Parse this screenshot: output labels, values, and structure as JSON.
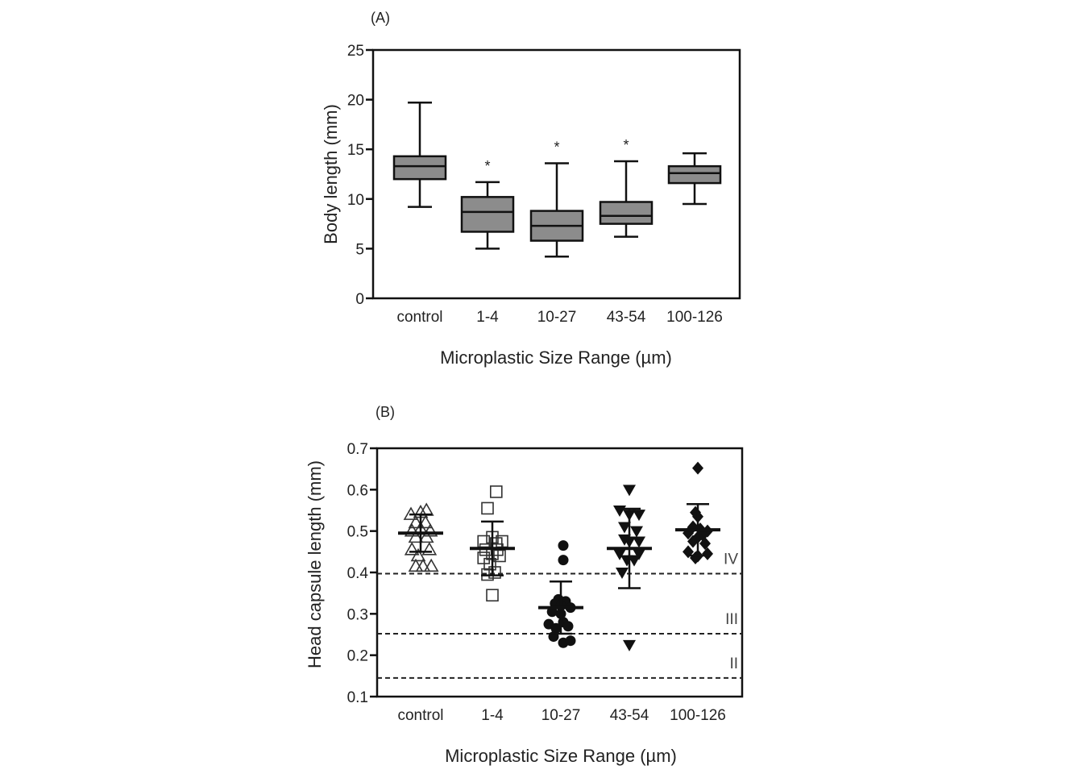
{
  "chart_data": [
    {
      "type": "boxplot",
      "panel_label": "(A)",
      "ylabel": "Body length  (mm)",
      "xlabel": "Microplastic Size Range (µm)",
      "ylim": [
        0,
        25
      ],
      "yticks": [
        0,
        5,
        10,
        15,
        20,
        25
      ],
      "categories": [
        "control",
        "1-4",
        "10-27",
        "43-54",
        "100-126"
      ],
      "boxes": [
        {
          "category": "control",
          "min": 9.2,
          "q1": 12.0,
          "median": 13.3,
          "q3": 14.3,
          "max": 19.7,
          "sig": ""
        },
        {
          "category": "1-4",
          "min": 5.0,
          "q1": 6.7,
          "median": 8.7,
          "q3": 10.2,
          "max": 11.7,
          "sig": "*"
        },
        {
          "category": "10-27",
          "min": 4.2,
          "q1": 5.8,
          "median": 7.3,
          "q3": 8.8,
          "max": 13.6,
          "sig": "*"
        },
        {
          "category": "43-54",
          "min": 6.2,
          "q1": 7.5,
          "median": 8.3,
          "q3": 9.7,
          "max": 13.8,
          "sig": "*"
        },
        {
          "category": "100-126",
          "min": 9.5,
          "q1": 11.6,
          "median": 12.6,
          "q3": 13.3,
          "max": 14.6,
          "sig": ""
        }
      ],
      "box_color": "#8c8c8c"
    },
    {
      "type": "scatter",
      "panel_label": "(B)",
      "ylabel": "Head capsule length (mm)",
      "xlabel": "Microplastic Size Range (µm)",
      "ylim": [
        0.1,
        0.7
      ],
      "yticks": [
        0.1,
        0.2,
        0.3,
        0.4,
        0.5,
        0.6,
        0.7
      ],
      "yticklabels": [
        "0.1",
        "0.2",
        "0.3",
        "0.4",
        "0.5",
        "0.6",
        "0.7"
      ],
      "categories": [
        "control",
        "1-4",
        "10-27",
        "43-54",
        "100-126"
      ],
      "reference_lines": [
        {
          "y": 0.397,
          "label": "IV"
        },
        {
          "y": 0.252,
          "label": "III"
        },
        {
          "y": 0.145,
          "label": "II"
        }
      ],
      "series": [
        {
          "category": "control",
          "marker": "triangle-up-open",
          "mean": 0.495,
          "sd": 0.045,
          "points": [
            [
              -0.2,
              0.54
            ],
            [
              0.0,
              0.545
            ],
            [
              0.12,
              0.55
            ],
            [
              -0.1,
              0.52
            ],
            [
              0.1,
              0.52
            ],
            [
              -0.18,
              0.5
            ],
            [
              0.0,
              0.505
            ],
            [
              0.2,
              0.5
            ],
            [
              -0.1,
              0.485
            ],
            [
              0.12,
              0.485
            ],
            [
              -0.18,
              0.455
            ],
            [
              0.18,
              0.455
            ],
            [
              -0.05,
              0.44
            ],
            [
              -0.1,
              0.415
            ],
            [
              0.05,
              0.415
            ],
            [
              0.22,
              0.415
            ]
          ]
        },
        {
          "category": "1-4",
          "marker": "square-open",
          "mean": 0.458,
          "sd": 0.065,
          "points": [
            [
              0.08,
              0.595
            ],
            [
              -0.1,
              0.555
            ],
            [
              -0.18,
              0.475
            ],
            [
              0.0,
              0.485
            ],
            [
              0.2,
              0.475
            ],
            [
              0.08,
              0.47
            ],
            [
              -0.14,
              0.455
            ],
            [
              0.1,
              0.455
            ],
            [
              -0.18,
              0.435
            ],
            [
              0.0,
              0.445
            ],
            [
              0.15,
              0.44
            ],
            [
              -0.05,
              0.42
            ],
            [
              0.05,
              0.4
            ],
            [
              -0.1,
              0.395
            ],
            [
              0.0,
              0.345
            ]
          ]
        },
        {
          "category": "10-27",
          "marker": "circle-filled",
          "mean": 0.315,
          "sd": 0.063,
          "points": [
            [
              0.05,
              0.465
            ],
            [
              0.05,
              0.43
            ],
            [
              -0.05,
              0.335
            ],
            [
              0.1,
              0.33
            ],
            [
              -0.12,
              0.325
            ],
            [
              0.0,
              0.32
            ],
            [
              0.2,
              0.315
            ],
            [
              -0.18,
              0.305
            ],
            [
              0.0,
              0.3
            ],
            [
              -0.25,
              0.275
            ],
            [
              0.05,
              0.28
            ],
            [
              -0.1,
              0.265
            ],
            [
              0.15,
              0.27
            ],
            [
              -0.15,
              0.245
            ],
            [
              0.05,
              0.23
            ],
            [
              0.2,
              0.235
            ]
          ]
        },
        {
          "category": "43-54",
          "marker": "triangle-down-filled",
          "mean": 0.458,
          "sd": 0.096,
          "points": [
            [
              0.0,
              0.6
            ],
            [
              -0.2,
              0.55
            ],
            [
              0.0,
              0.54
            ],
            [
              0.2,
              0.54
            ],
            [
              -0.1,
              0.51
            ],
            [
              0.15,
              0.5
            ],
            [
              -0.1,
              0.48
            ],
            [
              0.0,
              0.475
            ],
            [
              0.2,
              0.475
            ],
            [
              -0.2,
              0.445
            ],
            [
              0.2,
              0.445
            ],
            [
              -0.05,
              0.43
            ],
            [
              0.1,
              0.43
            ],
            [
              -0.15,
              0.4
            ],
            [
              0.0,
              0.225
            ]
          ]
        },
        {
          "category": "100-126",
          "marker": "diamond-filled",
          "mean": 0.503,
          "sd": 0.062,
          "points": [
            [
              0.0,
              0.652
            ],
            [
              -0.05,
              0.545
            ],
            [
              0.0,
              0.535
            ],
            [
              -0.1,
              0.51
            ],
            [
              0.05,
              0.505
            ],
            [
              0.2,
              0.5
            ],
            [
              -0.2,
              0.495
            ],
            [
              0.1,
              0.49
            ],
            [
              0.0,
              0.485
            ],
            [
              -0.1,
              0.475
            ],
            [
              0.15,
              0.47
            ],
            [
              -0.2,
              0.45
            ],
            [
              0.0,
              0.44
            ],
            [
              0.2,
              0.445
            ],
            [
              -0.05,
              0.435
            ]
          ]
        }
      ]
    }
  ]
}
